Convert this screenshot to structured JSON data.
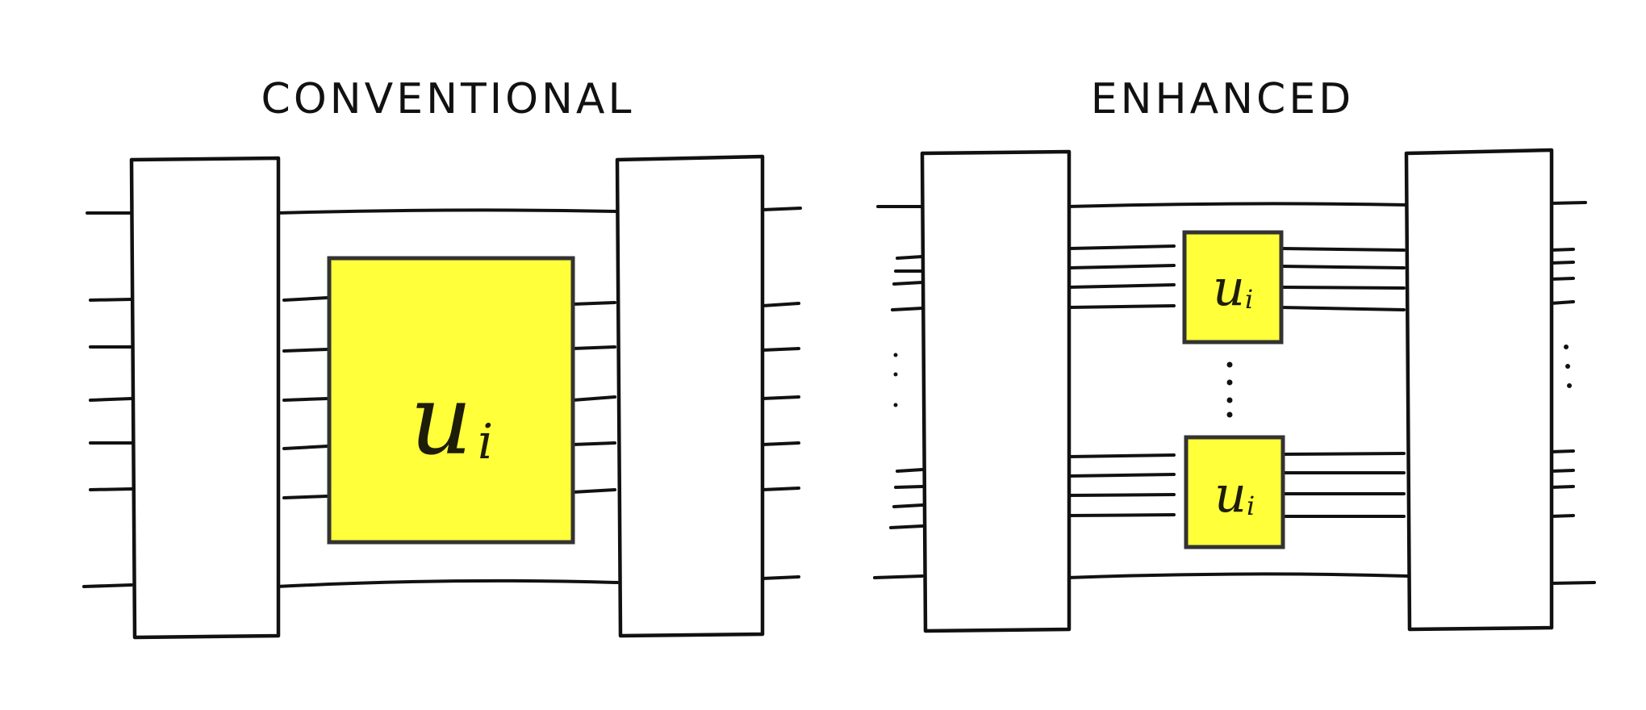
{
  "diagram": {
    "panels": [
      {
        "title": "CONVENTIONAL",
        "gate": {
          "symbol": "u",
          "subscript": "i"
        }
      },
      {
        "title": "ENHANCED",
        "gates": [
          {
            "symbol": "u",
            "subscript": "i"
          },
          {
            "symbol": "u",
            "subscript": "i"
          }
        ]
      }
    ],
    "colors": {
      "gate_fill": "#ffff3a",
      "gate_stroke": "#333333",
      "line": "#111111",
      "background": "#ffffff"
    }
  }
}
